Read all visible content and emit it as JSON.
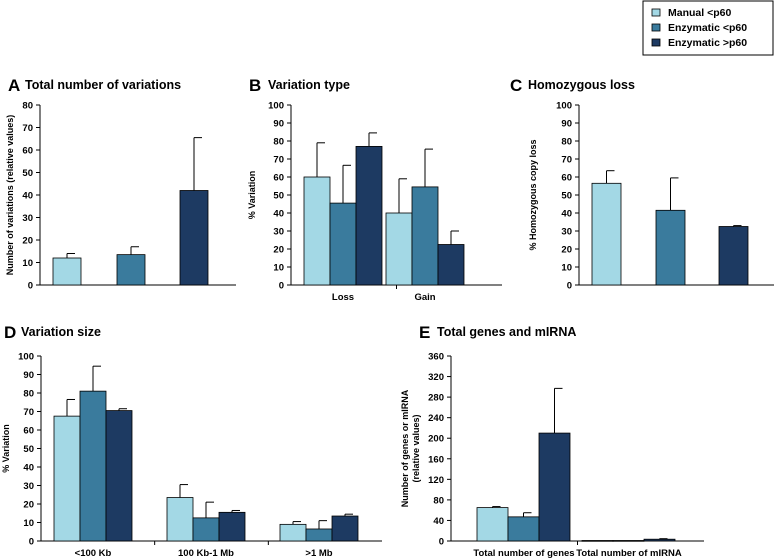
{
  "legend": {
    "items": [
      {
        "label": "Manual <p60",
        "color": "#a3d8e5"
      },
      {
        "label": "Enzymatic <p60",
        "color": "#3a7b9d"
      },
      {
        "label": "Enzymatic >p60",
        "color": "#1d3a62"
      }
    ]
  },
  "chart_data": [
    {
      "id": "A",
      "letter": "A",
      "title": "Total number of variations",
      "type": "bar",
      "ylabel": "Number of variations (relative values)",
      "ylim": [
        0,
        80
      ],
      "yticks": [
        0,
        10,
        20,
        30,
        40,
        50,
        60,
        70,
        80
      ],
      "categories": [
        ""
      ],
      "series": [
        {
          "name": "Manual <p60",
          "values": [
            12
          ],
          "errors": [
            2
          ]
        },
        {
          "name": "Enzymatic <p60",
          "values": [
            13.5
          ],
          "errors": [
            3.5
          ]
        },
        {
          "name": "Enzymatic >p60",
          "values": [
            42
          ],
          "errors": [
            23.5
          ]
        }
      ]
    },
    {
      "id": "B",
      "letter": "B",
      "title": "Variation type",
      "type": "bar",
      "ylabel": "% Variation",
      "ylim": [
        0,
        100
      ],
      "yticks": [
        0,
        10,
        20,
        30,
        40,
        50,
        60,
        70,
        80,
        90,
        100
      ],
      "categories": [
        "Loss",
        "Gain"
      ],
      "series": [
        {
          "name": "Manual <p60",
          "values": [
            60,
            40
          ],
          "errors": [
            19,
            19
          ]
        },
        {
          "name": "Enzymatic <p60",
          "values": [
            45.5,
            54.5
          ],
          "errors": [
            21,
            21
          ]
        },
        {
          "name": "Enzymatic >p60",
          "values": [
            77,
            22.5
          ],
          "errors": [
            7.5,
            7.5
          ]
        }
      ]
    },
    {
      "id": "C",
      "letter": "C",
      "title": "Homozygous loss",
      "type": "bar",
      "ylabel": "% Homozygous copy loss",
      "ylim": [
        0,
        100
      ],
      "yticks": [
        0,
        10,
        20,
        30,
        40,
        50,
        60,
        70,
        80,
        90,
        100
      ],
      "categories": [
        ""
      ],
      "series": [
        {
          "name": "Manual <p60",
          "values": [
            56.5
          ],
          "errors": [
            7
          ]
        },
        {
          "name": "Enzymatic <p60",
          "values": [
            41.5
          ],
          "errors": [
            18
          ]
        },
        {
          "name": "Enzymatic >p60",
          "values": [
            32.5
          ],
          "errors": [
            0.5
          ]
        }
      ]
    },
    {
      "id": "D",
      "letter": "D",
      "title": "Variation size",
      "type": "bar",
      "ylabel": "% Variation",
      "ylim": [
        0,
        100
      ],
      "yticks": [
        0,
        10,
        20,
        30,
        40,
        50,
        60,
        70,
        80,
        90,
        100
      ],
      "categories": [
        "<100 Kb",
        "100 Kb-1 Mb",
        ">1 Mb"
      ],
      "series": [
        {
          "name": "Manual <p60",
          "values": [
            67.5,
            23.5,
            9
          ],
          "errors": [
            9,
            7,
            1.5
          ]
        },
        {
          "name": "Enzymatic <p60",
          "values": [
            81,
            12.5,
            6.5
          ],
          "errors": [
            13.5,
            8.5,
            4.5
          ]
        },
        {
          "name": "Enzymatic >p60",
          "values": [
            70.5,
            15.5,
            13.5
          ],
          "errors": [
            1,
            1,
            1
          ]
        }
      ]
    },
    {
      "id": "E",
      "letter": "E",
      "title": "Total genes and mIRNA",
      "type": "bar",
      "ylabel": "Number of genes or mIRNA (relative values)",
      "ylim": [
        0,
        360
      ],
      "yticks": [
        0,
        40,
        80,
        120,
        160,
        200,
        240,
        280,
        320,
        360
      ],
      "categories": [
        "Total number of genes",
        "Total number of mIRNA"
      ],
      "series": [
        {
          "name": "Manual <p60",
          "values": [
            65,
            1
          ],
          "errors": [
            2,
            0
          ]
        },
        {
          "name": "Enzymatic <p60",
          "values": [
            47,
            1
          ],
          "errors": [
            8,
            0
          ]
        },
        {
          "name": "Enzymatic >p60",
          "values": [
            210,
            3.5
          ],
          "errors": [
            87,
            1
          ]
        }
      ]
    }
  ]
}
